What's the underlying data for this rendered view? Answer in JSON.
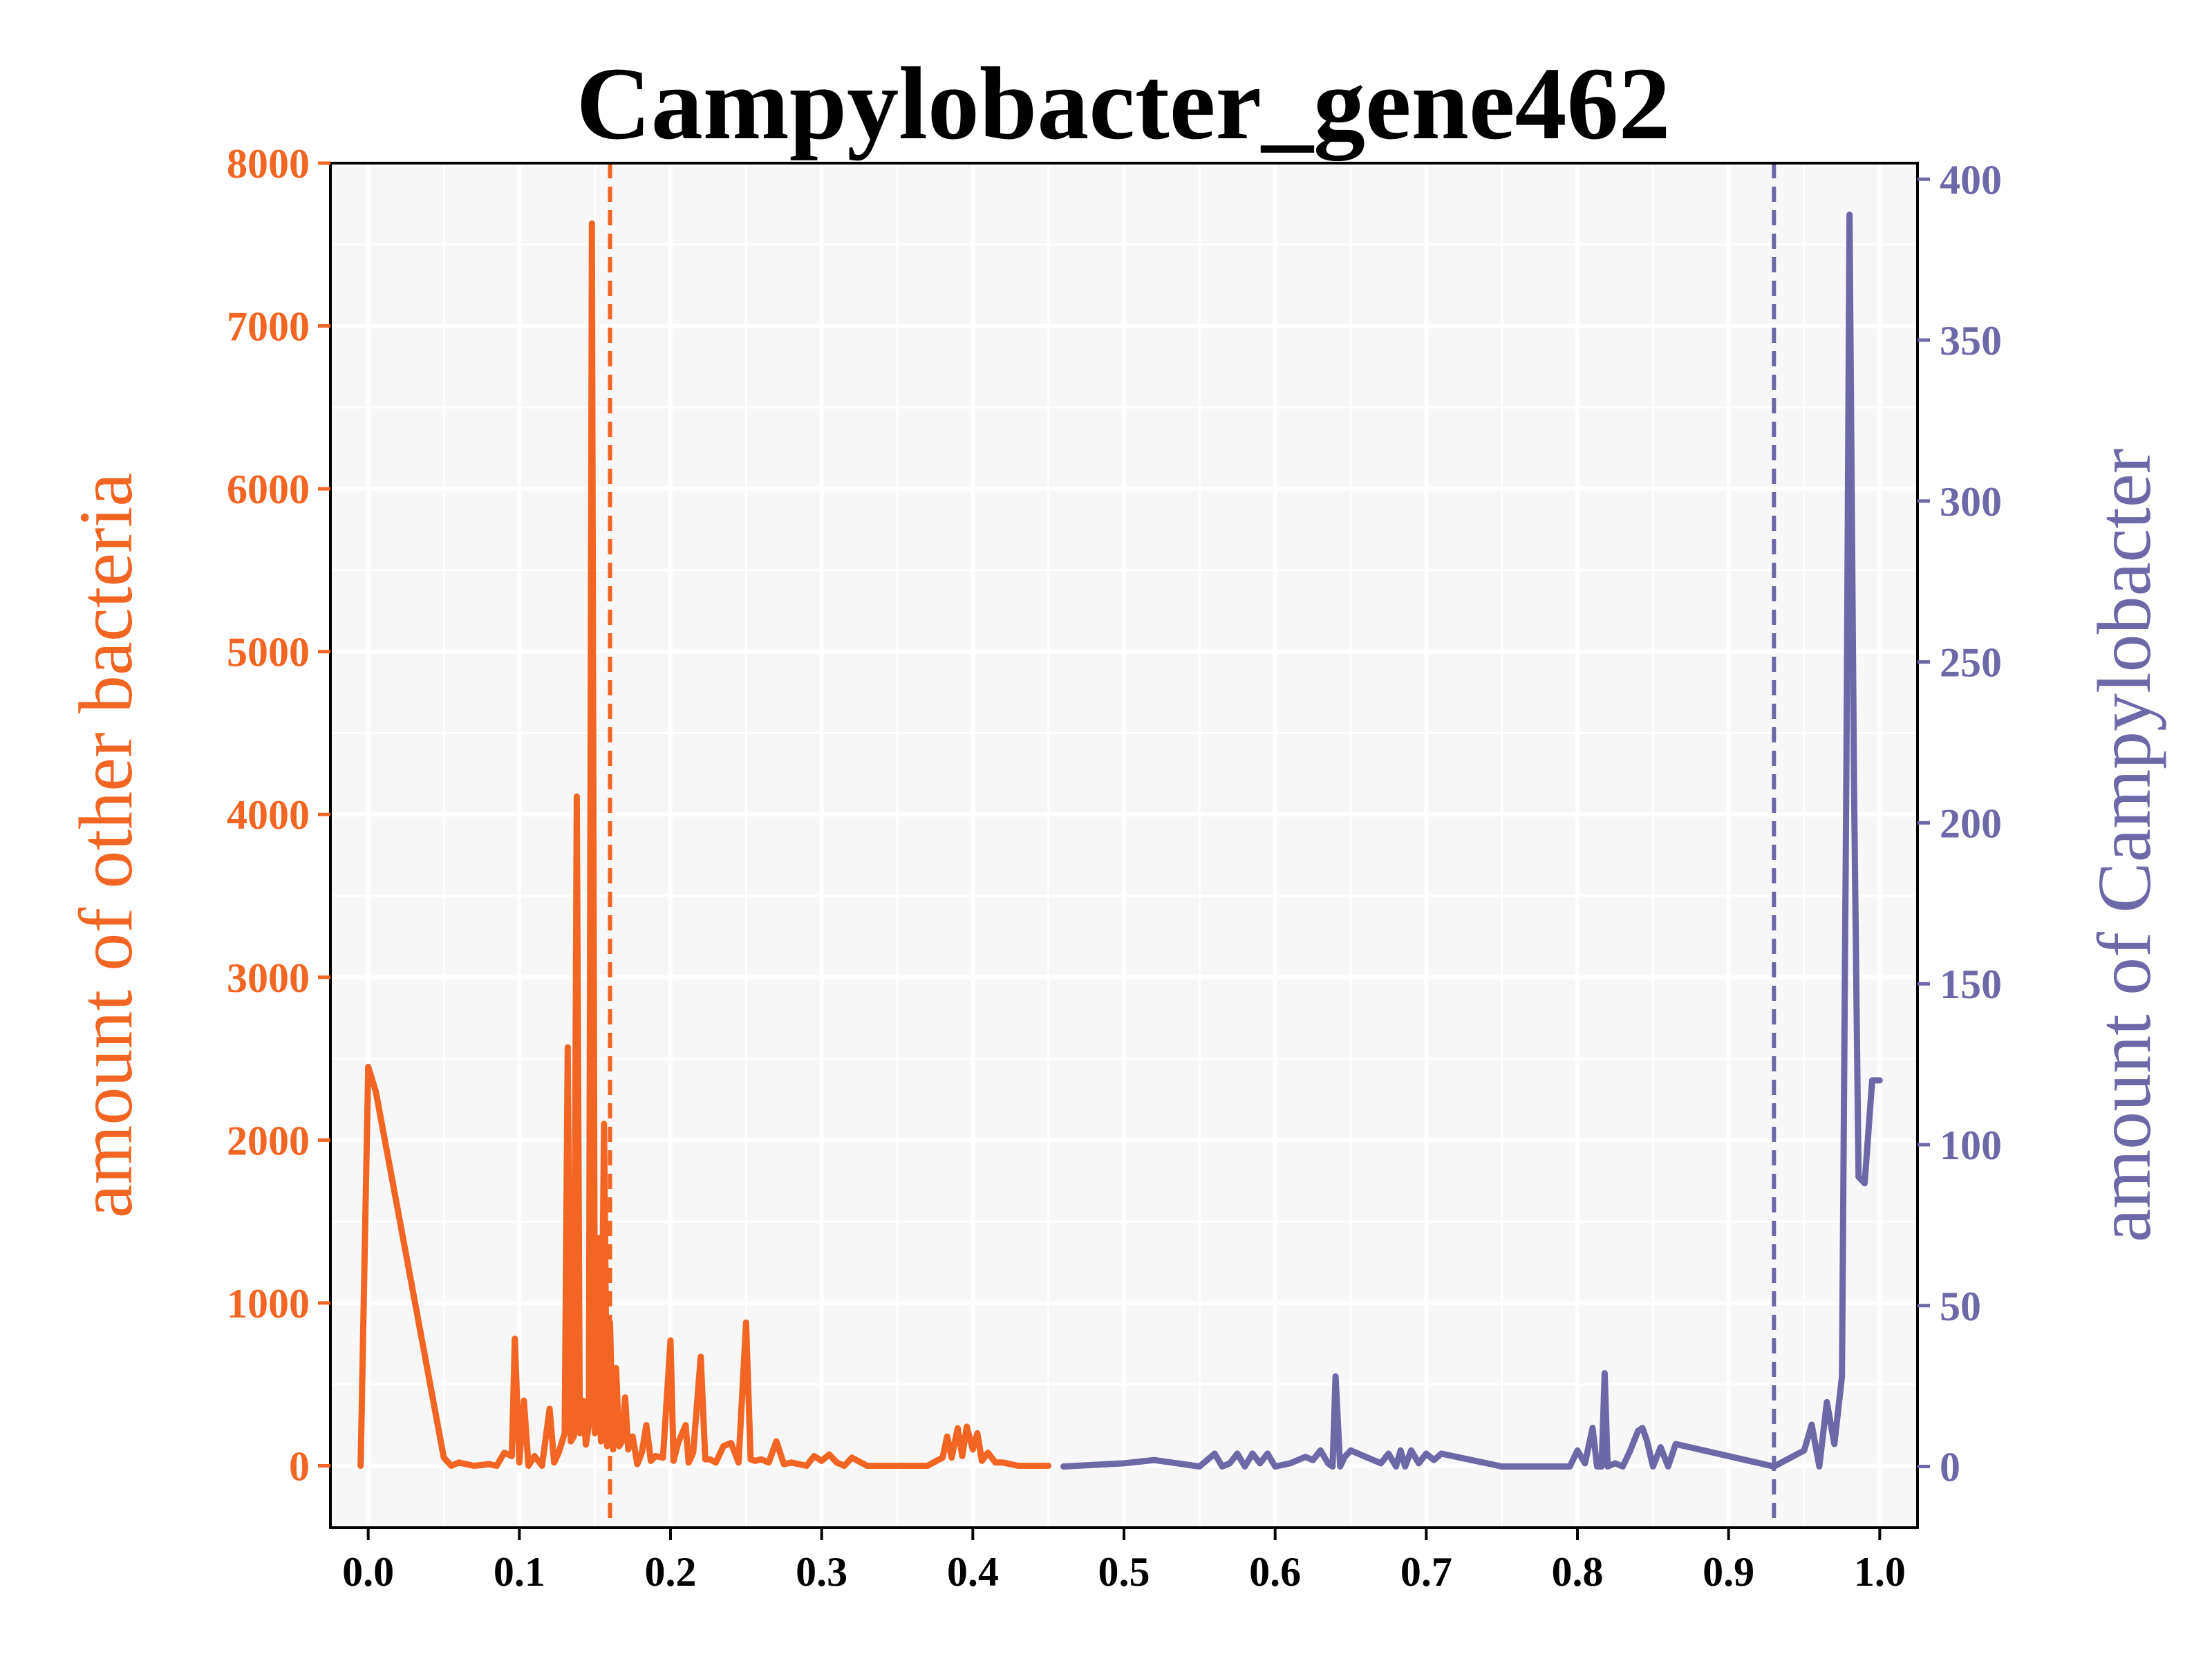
{
  "colors": {
    "left": "#f26522",
    "right": "#6d68a8",
    "background": "#f7f7f7",
    "grid": "#ffffff"
  },
  "chart_data": {
    "type": "line",
    "title": "Campylobacter_gene462",
    "xlabel": "",
    "xlim": [
      -0.025,
      1.025
    ],
    "xticks": [
      0.0,
      0.1,
      0.2,
      0.3,
      0.4,
      0.5,
      0.6,
      0.7,
      0.8,
      0.9,
      1.0
    ],
    "xtick_labels": [
      "0.0",
      "0.1",
      "0.2",
      "0.3",
      "0.4",
      "0.5",
      "0.6",
      "0.7",
      "0.8",
      "0.9",
      "1.0"
    ],
    "grid": true,
    "left_axis": {
      "label": "amount of other bacteria",
      "ylim": [
        -380,
        8000
      ],
      "ticks": [
        0,
        1000,
        2000,
        3000,
        4000,
        5000,
        6000,
        7000,
        8000
      ],
      "tick_labels": [
        "0",
        "1000",
        "2000",
        "3000",
        "4000",
        "5000",
        "6000",
        "7000",
        "8000"
      ]
    },
    "right_axis": {
      "label": "amount of Campylobacter",
      "ylim": [
        -19,
        405
      ],
      "ticks": [
        0,
        50,
        100,
        150,
        200,
        250,
        300,
        350,
        400
      ],
      "tick_labels": [
        "0",
        "50",
        "100",
        "150",
        "200",
        "250",
        "300",
        "350",
        "400"
      ]
    },
    "series": [
      {
        "axis": "left",
        "x": [
          -0.005,
          0.0,
          0.005,
          0.05,
          0.055,
          0.06,
          0.07,
          0.08,
          0.085,
          0.09,
          0.095,
          0.097,
          0.1,
          0.103,
          0.106,
          0.11,
          0.115,
          0.12,
          0.123,
          0.126,
          0.13,
          0.132,
          0.134,
          0.136,
          0.138,
          0.14,
          0.142,
          0.144,
          0.146,
          0.148,
          0.15,
          0.152,
          0.154,
          0.156,
          0.158,
          0.16,
          0.162,
          0.164,
          0.166,
          0.168,
          0.17,
          0.172,
          0.175,
          0.178,
          0.181,
          0.184,
          0.187,
          0.19,
          0.195,
          0.2,
          0.202,
          0.205,
          0.21,
          0.212,
          0.215,
          0.22,
          0.223,
          0.226,
          0.23,
          0.235,
          0.24,
          0.245,
          0.25,
          0.253,
          0.256,
          0.26,
          0.265,
          0.27,
          0.275,
          0.28,
          0.29,
          0.295,
          0.3,
          0.305,
          0.31,
          0.315,
          0.32,
          0.33,
          0.35,
          0.37,
          0.38,
          0.383,
          0.386,
          0.39,
          0.393,
          0.396,
          0.4,
          0.403,
          0.406,
          0.41,
          0.415,
          0.42,
          0.43,
          0.44,
          0.45
        ],
        "y": [
          0,
          2450,
          2300,
          50,
          0,
          20,
          0,
          10,
          0,
          80,
          60,
          780,
          20,
          400,
          0,
          60,
          0,
          350,
          20,
          80,
          200,
          2570,
          150,
          180,
          4110,
          200,
          400,
          130,
          250,
          7630,
          200,
          1400,
          150,
          2100,
          120,
          880,
          100,
          600,
          120,
          150,
          420,
          100,
          180,
          10,
          80,
          250,
          30,
          60,
          50,
          770,
          30,
          140,
          250,
          20,
          80,
          670,
          40,
          40,
          20,
          120,
          140,
          20,
          880,
          40,
          30,
          40,
          20,
          150,
          10,
          20,
          0,
          60,
          30,
          70,
          20,
          0,
          50,
          0,
          0,
          0,
          50,
          180,
          50,
          230,
          60,
          240,
          100,
          200,
          30,
          80,
          20,
          20,
          0,
          0,
          0
        ]
      },
      {
        "axis": "right",
        "x": [
          0.46,
          0.5,
          0.52,
          0.55,
          0.56,
          0.565,
          0.57,
          0.575,
          0.58,
          0.585,
          0.59,
          0.595,
          0.6,
          0.61,
          0.62,
          0.625,
          0.63,
          0.635,
          0.638,
          0.64,
          0.643,
          0.646,
          0.65,
          0.66,
          0.67,
          0.675,
          0.68,
          0.683,
          0.686,
          0.69,
          0.695,
          0.7,
          0.705,
          0.71,
          0.72,
          0.75,
          0.78,
          0.795,
          0.8,
          0.805,
          0.81,
          0.813,
          0.816,
          0.818,
          0.82,
          0.825,
          0.83,
          0.835,
          0.84,
          0.843,
          0.846,
          0.85,
          0.855,
          0.86,
          0.865,
          0.93,
          0.95,
          0.955,
          0.96,
          0.965,
          0.97,
          0.975,
          0.978,
          0.98,
          0.983,
          0.986,
          0.99,
          0.995,
          1.0
        ],
        "y": [
          0,
          1,
          2,
          0,
          4,
          0,
          1,
          4,
          0,
          4,
          1,
          4,
          0,
          1,
          3,
          2,
          5,
          1,
          0,
          28,
          0,
          3,
          5,
          3,
          1,
          4,
          0,
          5,
          0,
          5,
          1,
          4,
          2,
          4,
          3,
          0,
          0,
          0,
          5,
          1,
          12,
          0,
          0,
          29,
          0,
          1,
          0,
          5,
          11,
          12,
          8,
          0,
          6,
          0,
          7,
          0,
          5,
          13,
          0,
          20,
          7,
          28,
          220,
          389,
          210,
          90,
          88,
          120,
          120
        ]
      }
    ],
    "vlines": [
      {
        "axis": "left",
        "x": 0.16,
        "style": "dashed"
      },
      {
        "axis": "right",
        "x": 0.93,
        "style": "dashed"
      }
    ]
  }
}
